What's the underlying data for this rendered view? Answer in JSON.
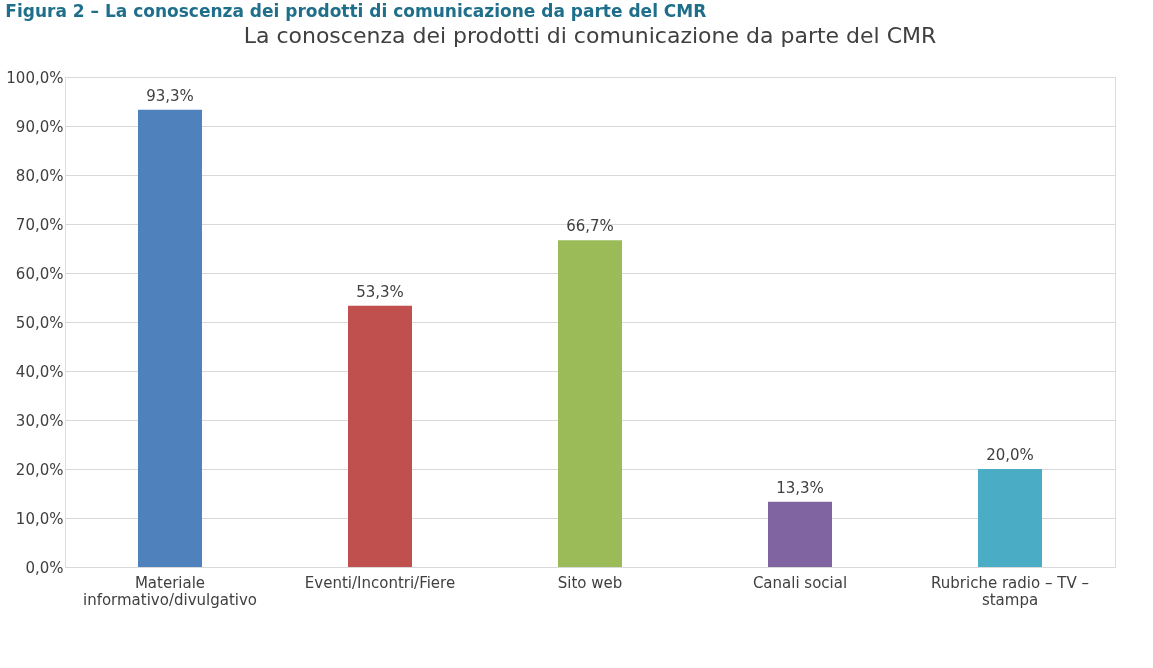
{
  "chart_data": {
    "type": "bar",
    "title": "La conoscenza dei prodotti di comunicazione da parte del CMR",
    "annotations": [
      "Figura 2 – La conoscenza dei prodotti di comunicazione da parte del CMR"
    ],
    "categories": [
      "Materiale informativo/divulgativo",
      "Eventi/Incontri/Fiere",
      "Sito web",
      "Canali social",
      "Rubriche radio – TV – stampa"
    ],
    "values": [
      93.3,
      53.3,
      66.7,
      13.3,
      20.0
    ],
    "value_labels": [
      "93,3%",
      "53,3%",
      "66,7%",
      "13,3%",
      "20,0%"
    ],
    "colors": [
      "#4f81bd",
      "#c0504d",
      "#9bbb59",
      "#8064a2",
      "#4bacc6"
    ],
    "ylim": [
      0,
      100
    ],
    "yticks": [
      {
        "value": 0,
        "label": "0,0%"
      },
      {
        "value": 10,
        "label": "10,0%"
      },
      {
        "value": 20,
        "label": "20,0%"
      },
      {
        "value": 30,
        "label": "30,0%"
      },
      {
        "value": 40,
        "label": "40,0%"
      },
      {
        "value": 50,
        "label": "50,0%"
      },
      {
        "value": 60,
        "label": "60,0%"
      },
      {
        "value": 70,
        "label": "70,0%"
      },
      {
        "value": 80,
        "label": "80,0%"
      },
      {
        "value": 90,
        "label": "90,0%"
      },
      {
        "value": 100,
        "label": "100,0%"
      }
    ],
    "grid": "y"
  }
}
